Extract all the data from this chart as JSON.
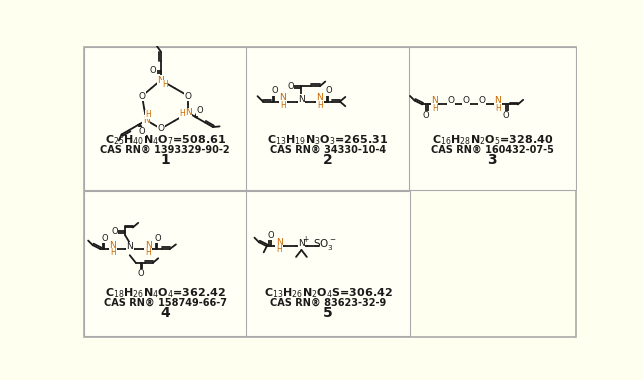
{
  "bg_color": "#fffff0",
  "panel_bg": "#fffff5",
  "border_color": "#ccccaa",
  "dc": "#1a1a1a",
  "orange": "#cc6600",
  "panels": [
    {
      "id": 1,
      "col": 0,
      "row": 0,
      "formula": "C$_{25}$H$_{40}$N$_4$O$_7$=508.61",
      "cas": "CAS RN® 1393329-90-2",
      "num": "1"
    },
    {
      "id": 2,
      "col": 1,
      "row": 0,
      "formula": "C$_{13}$H$_{19}$N$_3$O$_3$=265.31",
      "cas": "CAS RN® 34330-10-4",
      "num": "2"
    },
    {
      "id": 3,
      "col": 2,
      "row": 0,
      "formula": "C$_{16}$H$_{28}$N$_2$O$_5$=328.40",
      "cas": "CAS RN® 160432-07-5",
      "num": "3"
    },
    {
      "id": 4,
      "col": 0,
      "row": 1,
      "formula": "C$_{18}$H$_{26}$N$_4$O$_4$=362.42",
      "cas": "CAS RN® 158749-66-7",
      "num": "4"
    },
    {
      "id": 5,
      "col": 1,
      "row": 1,
      "formula": "C$_{13}$H$_{26}$N$_2$O$_4$S=306.42",
      "cas": "CAS RN® 83623-32-9",
      "num": "5"
    }
  ]
}
